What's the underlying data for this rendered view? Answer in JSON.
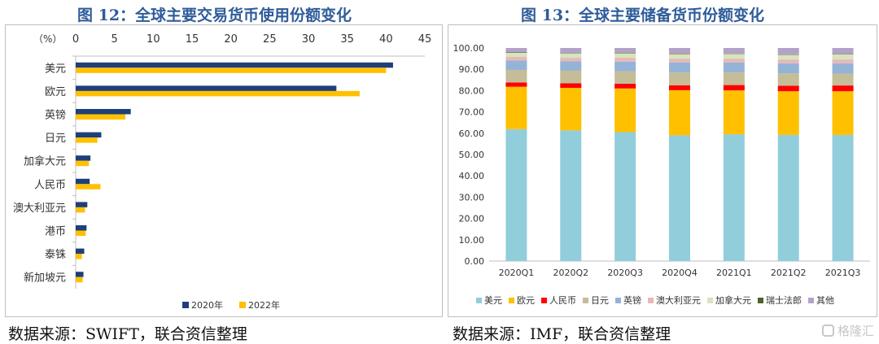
{
  "left": {
    "title": "图 12：全球主要交易货币使用份额变化",
    "source": "数据来源：SWIFT，联合资信整理",
    "chart_data": {
      "type": "bar",
      "orientation": "horizontal",
      "unit_label": "（%）",
      "categories": [
        "美元",
        "欧元",
        "英镑",
        "日元",
        "加拿大元",
        "人民币",
        "澳大利亚元",
        "港币",
        "泰铢",
        "新加坡元"
      ],
      "series": [
        {
          "name": "2020年",
          "color": "#1f3f7a",
          "values": [
            40.9,
            33.6,
            7.1,
            3.3,
            1.9,
            1.8,
            1.5,
            1.4,
            1.1,
            1.0
          ]
        },
        {
          "name": "2022年",
          "color": "#ffc000",
          "values": [
            40.0,
            36.6,
            6.4,
            2.8,
            1.7,
            3.2,
            1.2,
            1.3,
            0.8,
            0.9
          ]
        }
      ],
      "xlim": [
        0,
        45
      ],
      "xticks": [
        0,
        5,
        10,
        15,
        20,
        25,
        30,
        35,
        40,
        45
      ],
      "legend": "bottom"
    }
  },
  "right": {
    "title": "图 13：全球主要储备货币份额变化",
    "source": "数据来源：IMF，联合资信整理",
    "chart_data": {
      "type": "bar",
      "stacked": true,
      "categories": [
        "2020Q1",
        "2020Q2",
        "2020Q3",
        "2020Q4",
        "2021Q1",
        "2021Q2",
        "2021Q3"
      ],
      "ylim": [
        0,
        100
      ],
      "yticks": [
        "0.00",
        "10.00",
        "20.00",
        "30.00",
        "40.00",
        "50.00",
        "60.00",
        "70.00",
        "80.00",
        "90.00",
        "100.00"
      ],
      "series": [
        {
          "name": "美元",
          "color": "#92cddc",
          "values": [
            61.9,
            61.3,
            60.5,
            59.0,
            59.5,
            59.2,
            59.2
          ]
        },
        {
          "name": "欧元",
          "color": "#ffc000",
          "values": [
            19.9,
            20.0,
            20.5,
            21.2,
            20.6,
            20.5,
            20.5
          ]
        },
        {
          "name": "人民币",
          "color": "#ff0000",
          "values": [
            2.0,
            2.1,
            2.2,
            2.3,
            2.5,
            2.6,
            2.7
          ]
        },
        {
          "name": "日元",
          "color": "#c4bd97",
          "values": [
            5.9,
            5.9,
            5.9,
            6.0,
            5.9,
            5.8,
            5.6
          ]
        },
        {
          "name": "英镑",
          "color": "#95b3d7",
          "values": [
            4.4,
            4.4,
            4.5,
            4.7,
            4.7,
            4.7,
            4.8
          ]
        },
        {
          "name": "澳大利亚元",
          "color": "#e6b9b8",
          "values": [
            1.7,
            1.7,
            1.8,
            1.8,
            1.8,
            1.8,
            1.8
          ]
        },
        {
          "name": "加拿大元",
          "color": "#d7e4bd",
          "values": [
            1.9,
            2.0,
            2.1,
            2.1,
            2.2,
            2.2,
            2.4
          ]
        },
        {
          "name": "瑞士法郎",
          "color": "#4f6228",
          "values": [
            0.2,
            0.2,
            0.2,
            0.2,
            0.2,
            0.2,
            0.2
          ]
        },
        {
          "name": "其他",
          "color": "#b3a2c7",
          "values": [
            2.1,
            2.4,
            2.3,
            2.7,
            2.6,
            3.0,
            2.8
          ]
        }
      ],
      "legend": "bottom"
    }
  },
  "watermark": "格隆汇"
}
